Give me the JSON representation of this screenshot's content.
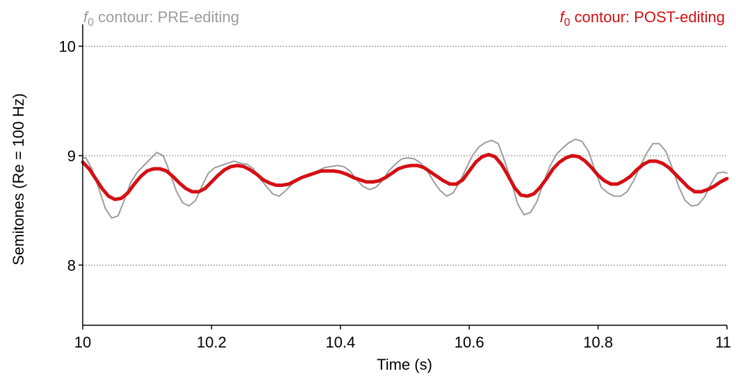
{
  "colors": {
    "pre": "#9b9b9b",
    "post": "#d40f14",
    "grid": "#808080",
    "axis": "#000000"
  },
  "legend": {
    "pre": {
      "symbol": "f",
      "subscript": "0",
      "text": " contour: PRE-editing"
    },
    "post": {
      "symbol": "f",
      "subscript": "0",
      "text": " contour: POST-editing"
    }
  },
  "chart_data": {
    "type": "line",
    "title": "",
    "xlabel": "Time (s)",
    "ylabel": "Semitones (Re = 100 Hz)",
    "xlim": [
      10,
      11
    ],
    "ylim": [
      7.45,
      10.2
    ],
    "xticks": [
      10,
      10.2,
      10.4,
      10.6,
      10.8,
      11
    ],
    "xtick_labels": [
      "10",
      "10.2",
      "10.4",
      "10.6",
      "10.8",
      "11"
    ],
    "yticks": [
      8,
      9,
      10
    ],
    "ytick_labels": [
      "8",
      "9",
      "10"
    ],
    "grid": {
      "horizontal": [
        8,
        9,
        10
      ],
      "style": "dotted"
    },
    "legend_placement": "top",
    "series": [
      {
        "name": "PRE-editing",
        "x": [
          10.0,
          10.005,
          10.015,
          10.025,
          10.035,
          10.045,
          10.055,
          10.065,
          10.075,
          10.085,
          10.095,
          10.105,
          10.115,
          10.125,
          10.135,
          10.145,
          10.155,
          10.165,
          10.175,
          10.185,
          10.195,
          10.205,
          10.215,
          10.225,
          10.235,
          10.245,
          10.255,
          10.265,
          10.275,
          10.285,
          10.295,
          10.305,
          10.315,
          10.325,
          10.335,
          10.345,
          10.355,
          10.365,
          10.375,
          10.385,
          10.395,
          10.405,
          10.415,
          10.425,
          10.435,
          10.445,
          10.455,
          10.465,
          10.475,
          10.485,
          10.495,
          10.505,
          10.515,
          10.525,
          10.535,
          10.545,
          10.555,
          10.565,
          10.575,
          10.585,
          10.595,
          10.605,
          10.615,
          10.625,
          10.635,
          10.645,
          10.655,
          10.665,
          10.675,
          10.685,
          10.695,
          10.705,
          10.715,
          10.725,
          10.735,
          10.745,
          10.755,
          10.765,
          10.775,
          10.785,
          10.795,
          10.805,
          10.815,
          10.825,
          10.835,
          10.845,
          10.855,
          10.865,
          10.875,
          10.885,
          10.895,
          10.905,
          10.915,
          10.925,
          10.935,
          10.945,
          10.955,
          10.965,
          10.975,
          10.985,
          10.995,
          11.0
        ],
        "y": [
          8.98,
          8.98,
          8.87,
          8.7,
          8.52,
          8.43,
          8.45,
          8.6,
          8.76,
          8.85,
          8.91,
          8.97,
          9.03,
          9.0,
          8.85,
          8.68,
          8.57,
          8.54,
          8.59,
          8.72,
          8.84,
          8.89,
          8.91,
          8.93,
          8.95,
          8.93,
          8.92,
          8.88,
          8.79,
          8.72,
          8.65,
          8.63,
          8.68,
          8.74,
          8.79,
          8.82,
          8.84,
          8.86,
          8.89,
          8.9,
          8.91,
          8.9,
          8.86,
          8.78,
          8.72,
          8.69,
          8.71,
          8.77,
          8.86,
          8.92,
          8.97,
          8.98,
          8.97,
          8.93,
          8.86,
          8.76,
          8.68,
          8.63,
          8.66,
          8.76,
          8.88,
          9.0,
          9.08,
          9.12,
          9.14,
          9.11,
          8.95,
          8.77,
          8.56,
          8.46,
          8.48,
          8.58,
          8.75,
          8.9,
          9.01,
          9.07,
          9.12,
          9.15,
          9.13,
          9.04,
          8.87,
          8.71,
          8.66,
          8.63,
          8.63,
          8.67,
          8.77,
          8.9,
          9.02,
          9.11,
          9.11,
          9.04,
          8.89,
          8.72,
          8.59,
          8.54,
          8.55,
          8.62,
          8.74,
          8.84,
          8.85,
          8.84
        ]
      },
      {
        "name": "POST-editing",
        "x": [
          10.0,
          10.01,
          10.02,
          10.03,
          10.04,
          10.05,
          10.06,
          10.07,
          10.08,
          10.09,
          10.1,
          10.11,
          10.12,
          10.13,
          10.14,
          10.15,
          10.16,
          10.17,
          10.18,
          10.19,
          10.2,
          10.21,
          10.22,
          10.23,
          10.24,
          10.25,
          10.26,
          10.27,
          10.28,
          10.29,
          10.3,
          10.31,
          10.32,
          10.33,
          10.34,
          10.35,
          10.36,
          10.37,
          10.38,
          10.39,
          10.4,
          10.41,
          10.42,
          10.43,
          10.44,
          10.45,
          10.46,
          10.47,
          10.48,
          10.49,
          10.5,
          10.51,
          10.52,
          10.53,
          10.54,
          10.55,
          10.56,
          10.57,
          10.58,
          10.59,
          10.6,
          10.61,
          10.62,
          10.63,
          10.64,
          10.65,
          10.66,
          10.67,
          10.68,
          10.69,
          10.7,
          10.71,
          10.72,
          10.73,
          10.74,
          10.75,
          10.76,
          10.77,
          10.78,
          10.79,
          10.8,
          10.81,
          10.82,
          10.83,
          10.84,
          10.85,
          10.86,
          10.87,
          10.88,
          10.89,
          10.9,
          10.91,
          10.92,
          10.93,
          10.94,
          10.95,
          10.96,
          10.97,
          10.98,
          10.99,
          11.0
        ],
        "y": [
          8.94,
          8.88,
          8.79,
          8.7,
          8.63,
          8.6,
          8.61,
          8.66,
          8.74,
          8.81,
          8.86,
          8.88,
          8.88,
          8.86,
          8.81,
          8.75,
          8.7,
          8.67,
          8.67,
          8.7,
          8.76,
          8.82,
          8.87,
          8.9,
          8.91,
          8.9,
          8.87,
          8.83,
          8.78,
          8.75,
          8.73,
          8.73,
          8.74,
          8.77,
          8.8,
          8.82,
          8.84,
          8.86,
          8.86,
          8.86,
          8.85,
          8.83,
          8.8,
          8.78,
          8.76,
          8.76,
          8.77,
          8.8,
          8.84,
          8.88,
          8.9,
          8.91,
          8.91,
          8.89,
          8.85,
          8.81,
          8.77,
          8.74,
          8.74,
          8.78,
          8.86,
          8.94,
          8.99,
          9.01,
          8.99,
          8.92,
          8.82,
          8.71,
          8.64,
          8.63,
          8.65,
          8.71,
          8.79,
          8.88,
          8.94,
          8.98,
          9.0,
          8.99,
          8.95,
          8.89,
          8.82,
          8.77,
          8.74,
          8.74,
          8.77,
          8.81,
          8.87,
          8.92,
          8.95,
          8.95,
          8.93,
          8.89,
          8.83,
          8.77,
          8.71,
          8.67,
          8.67,
          8.69,
          8.72,
          8.76,
          8.79
        ]
      }
    ]
  }
}
